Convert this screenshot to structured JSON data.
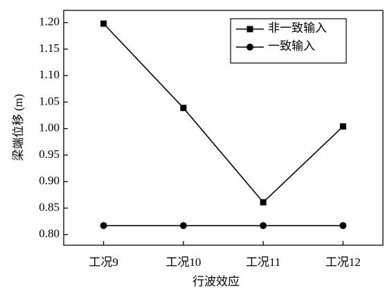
{
  "chart_data": {
    "type": "line",
    "x_label": "行波效应",
    "y_label": "梁端位移 (m)",
    "categories": [
      "工况9",
      "工况10",
      "工况11",
      "工况12"
    ],
    "series": [
      {
        "name": "非一致输入",
        "color": "#000000",
        "marker": "square",
        "values": [
          1.198,
          1.039,
          0.861,
          1.004
        ]
      },
      {
        "name": "一致输入",
        "color": "#000000",
        "marker": "circle",
        "values": [
          0.817,
          0.817,
          0.817,
          0.817
        ]
      }
    ],
    "ylim": [
      0.78,
      1.223
    ],
    "yticks": [
      {
        "value": 0.8,
        "label": "0.80"
      },
      {
        "value": 0.85,
        "label": "0.85"
      },
      {
        "value": 0.9,
        "label": "0.90"
      },
      {
        "value": 0.95,
        "label": "0.95"
      },
      {
        "value": 1.0,
        "label": "1.00"
      },
      {
        "value": 1.05,
        "label": "1.05"
      },
      {
        "value": 1.1,
        "label": "1.10"
      },
      {
        "value": 1.15,
        "label": "1.15"
      },
      {
        "value": 1.2,
        "label": "1.20"
      }
    ],
    "grid": false,
    "legend": "upper right"
  }
}
